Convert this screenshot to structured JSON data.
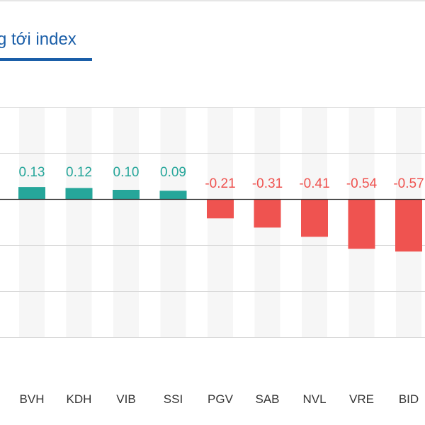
{
  "header": {
    "tab_title": "g tới index"
  },
  "colors": {
    "positive": "#26a69a",
    "negative": "#ef5350",
    "grid": "#d9d9d9",
    "band": "#f6f6f6",
    "zero_line": "#333333",
    "title": "#1a5ea8"
  },
  "chart_data": {
    "type": "bar",
    "categories": [
      "BVH",
      "KDH",
      "VIB",
      "SSI",
      "PGV",
      "SAB",
      "NVL",
      "VRE",
      "BID"
    ],
    "values": [
      0.13,
      0.12,
      0.1,
      0.09,
      -0.21,
      -0.31,
      -0.41,
      -0.54,
      -0.57
    ],
    "value_labels": [
      "0.13",
      "0.12",
      "0.10",
      "0.09",
      "-0.21",
      "-0.31",
      "-0.41",
      "-0.54",
      "-0.57"
    ],
    "title": "",
    "xlabel": "",
    "ylabel": "",
    "ylim": [
      -1.5,
      1.0
    ],
    "grid": true,
    "legend": "none"
  }
}
